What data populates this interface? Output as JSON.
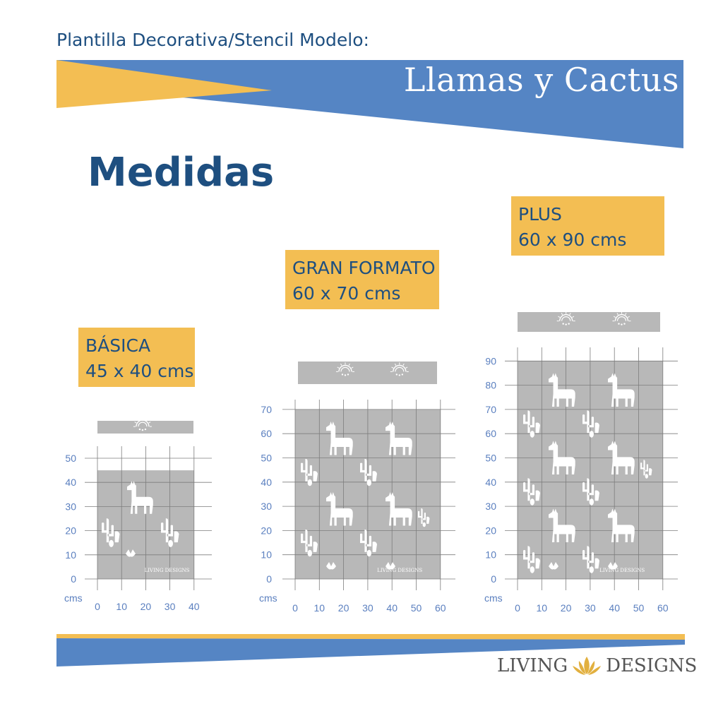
{
  "header": {
    "subtitle": "Plantilla Decorativa/Stencil Modelo:",
    "title": "Llamas y Cactus"
  },
  "section_title": "Medidas",
  "colors": {
    "navy": "#1e4f80",
    "blue": "#5585c4",
    "yellow": "#f3be53",
    "gray": "#b8b8b8",
    "grid": "#7d7d7d",
    "axis_text": "#5a7fbf"
  },
  "sizes": [
    {
      "id": "basica",
      "name": "BÁSICA",
      "dims": "45 x 40 cms",
      "width_cm": 40,
      "height_cm": 45,
      "llamas": 1,
      "x_ticks": [
        "0",
        "10",
        "20",
        "30",
        "40"
      ],
      "y_ticks": [
        "50",
        "40",
        "30",
        "20",
        "10",
        "0"
      ],
      "unit": "cms"
    },
    {
      "id": "gran",
      "name": "GRAN FORMATO",
      "dims": "60 x 70 cms",
      "width_cm": 60,
      "height_cm": 70,
      "llamas": 4,
      "x_ticks": [
        "0",
        "10",
        "20",
        "30",
        "40",
        "50",
        "60"
      ],
      "y_ticks": [
        "70",
        "60",
        "50",
        "40",
        "30",
        "20",
        "10",
        "0"
      ],
      "unit": "cms"
    },
    {
      "id": "plus",
      "name": "PLUS",
      "dims": "60 x 90 cms",
      "width_cm": 60,
      "height_cm": 90,
      "llamas": 6,
      "x_ticks": [
        "0",
        "10",
        "20",
        "30",
        "40",
        "50",
        "60"
      ],
      "y_ticks": [
        "90",
        "80",
        "70",
        "60",
        "50",
        "40",
        "30",
        "20",
        "10",
        "0"
      ],
      "unit": "cms"
    }
  ],
  "brand": {
    "left": "LIVING",
    "right": "DESIGNS",
    "watermark": "LIVING DESIGNS",
    "icon": "lotus-icon"
  }
}
